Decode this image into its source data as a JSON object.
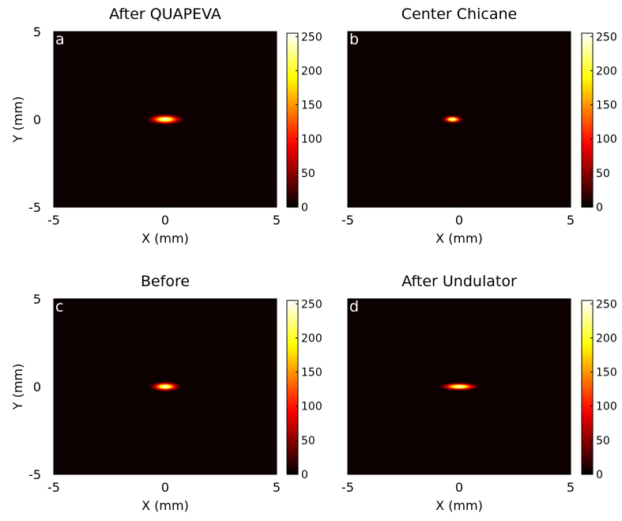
{
  "chart_data": [
    {
      "type": "heatmap",
      "panel_label": "a",
      "title": "After QUAPEVA",
      "xlabel": "X (mm)",
      "ylabel": "Y (mm)",
      "xlim": [
        -5,
        5
      ],
      "ylim": [
        -5,
        5
      ],
      "x_ticks": [
        "-5",
        "0",
        "5"
      ],
      "y_ticks": [
        "5",
        "0",
        "-5"
      ],
      "colorbar": {
        "min": 0,
        "max": 255,
        "ticks": [
          "250",
          "200",
          "150",
          "100",
          "50",
          "0"
        ],
        "colormap": "hot"
      },
      "spot": {
        "x_center": 0.0,
        "y_center": 0.0,
        "sigma_x": 0.35,
        "sigma_y": 0.13,
        "peak": 255
      }
    },
    {
      "type": "heatmap",
      "panel_label": "b",
      "title": "Center Chicane",
      "xlabel": "X (mm)",
      "ylabel": "",
      "xlim": [
        -5,
        5
      ],
      "ylim": [
        -5,
        5
      ],
      "x_ticks": [
        "-5",
        "0",
        "5"
      ],
      "y_ticks": [],
      "colorbar": {
        "min": 0,
        "max": 255,
        "ticks": [
          "250",
          "200",
          "150",
          "100",
          "50",
          "0"
        ],
        "colormap": "hot"
      },
      "spot": {
        "x_center": -0.3,
        "y_center": 0.0,
        "sigma_x": 0.2,
        "sigma_y": 0.1,
        "peak": 255
      }
    },
    {
      "type": "heatmap",
      "panel_label": "c",
      "title": "Before",
      "xlabel": "X (mm)",
      "ylabel": "Y (mm)",
      "xlim": [
        -5,
        5
      ],
      "ylim": [
        -5,
        5
      ],
      "x_ticks": [
        "-5",
        "0",
        "5"
      ],
      "y_ticks": [
        "5",
        "0",
        "-5"
      ],
      "colorbar": {
        "min": 0,
        "max": 255,
        "ticks": [
          "250",
          "200",
          "150",
          "100",
          "50",
          "0"
        ],
        "colormap": "hot"
      },
      "spot": {
        "x_center": 0.0,
        "y_center": 0.0,
        "sigma_x": 0.3,
        "sigma_y": 0.12,
        "peak": 255
      }
    },
    {
      "type": "heatmap",
      "panel_label": "d",
      "title": "After Undulator",
      "xlabel": "X (mm)",
      "ylabel": "",
      "xlim": [
        -5,
        5
      ],
      "ylim": [
        -5,
        5
      ],
      "x_ticks": [
        "-5",
        "0",
        "5"
      ],
      "y_ticks": [],
      "colorbar": {
        "min": 0,
        "max": 255,
        "ticks": [
          "250",
          "200",
          "150",
          "100",
          "50",
          "0"
        ],
        "colormap": "hot"
      },
      "spot": {
        "x_center": 0.0,
        "y_center": 0.0,
        "sigma_x": 0.38,
        "sigma_y": 0.1,
        "peak": 255
      }
    }
  ]
}
